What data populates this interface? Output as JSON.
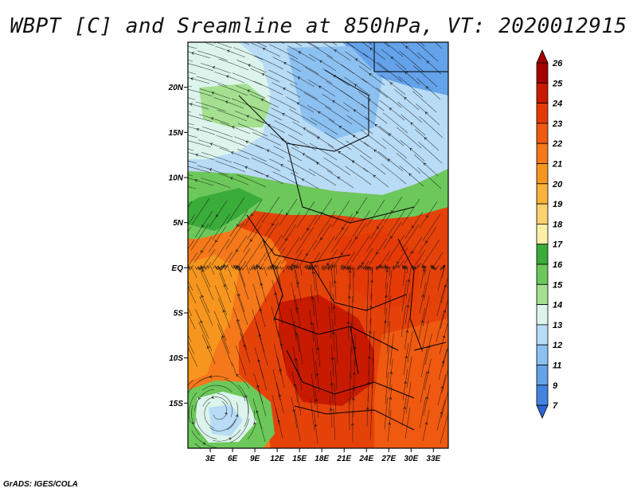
{
  "title": "WBPT [C] and Sreamline at 850hPa, VT: 2020012915",
  "credit": "GrADS: IGES/COLA",
  "map": {
    "lon_range": [
      0,
      35
    ],
    "lat_range": [
      -20,
      25
    ],
    "lat_ticks": [
      {
        "value": 20,
        "label": "20N"
      },
      {
        "value": 15,
        "label": "15N"
      },
      {
        "value": 10,
        "label": "10N"
      },
      {
        "value": 5,
        "label": "5N"
      },
      {
        "value": 0,
        "label": "EQ"
      },
      {
        "value": -5,
        "label": "5S"
      },
      {
        "value": -10,
        "label": "10S"
      },
      {
        "value": -15,
        "label": "15S"
      }
    ],
    "lon_ticks": [
      {
        "value": 3,
        "label": "3E"
      },
      {
        "value": 6,
        "label": "6E"
      },
      {
        "value": 9,
        "label": "9E"
      },
      {
        "value": 12,
        "label": "12E"
      },
      {
        "value": 15,
        "label": "15E"
      },
      {
        "value": 18,
        "label": "18E"
      },
      {
        "value": 21,
        "label": "21E"
      },
      {
        "value": 24,
        "label": "24E"
      },
      {
        "value": 27,
        "label": "27E"
      },
      {
        "value": 30,
        "label": "30E"
      },
      {
        "value": 33,
        "label": "33E"
      }
    ]
  },
  "colorbar": {
    "labels": [
      "26",
      "25",
      "24",
      "23",
      "22",
      "21",
      "20",
      "19",
      "18",
      "17",
      "16",
      "15",
      "14",
      "13",
      "12",
      "11",
      "9",
      "7"
    ],
    "colors": [
      "#a50000",
      "#c81a00",
      "#e53a08",
      "#ef5a10",
      "#f5781a",
      "#f7961e",
      "#f9b23c",
      "#fbd26e",
      "#fdf0a6",
      "#3aac3a",
      "#6cc85a",
      "#a4e090",
      "#dcf4ec",
      "#b8dcf6",
      "#8cc0f0",
      "#64a2ea",
      "#4484e0",
      "#2a66d6"
    ],
    "top_color": "#a50000",
    "bottom_color": "#2a66d6"
  }
}
